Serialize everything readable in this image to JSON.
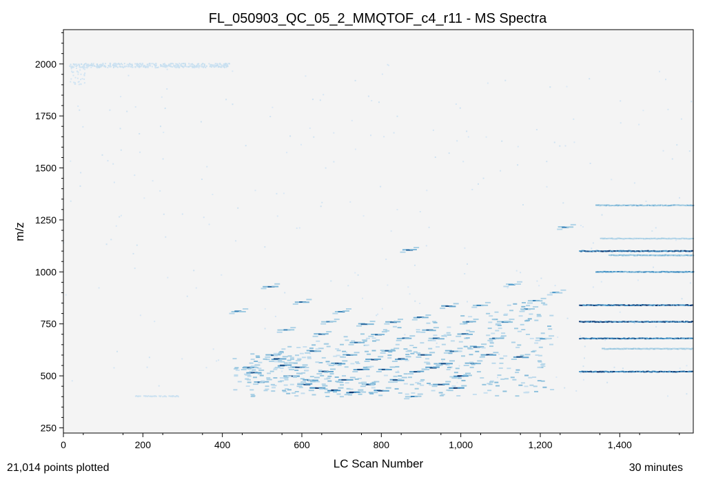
{
  "chart_data": {
    "type": "scatter",
    "title": "FL_050903_QC_05_2_MMQTOF_c4_r11 - MS Spectra",
    "xlabel": "LC Scan Number",
    "ylabel": "m/z",
    "xlim": [
      0,
      1585
    ],
    "ylim": [
      225,
      2165
    ],
    "xticks": [
      0,
      200,
      400,
      600,
      800,
      1000,
      1200,
      1400
    ],
    "xtick_labels": [
      "0",
      "200",
      "400",
      "600",
      "800",
      "1,000",
      "1,200",
      "1,400"
    ],
    "yticks": [
      250,
      500,
      750,
      1000,
      1250,
      1500,
      1750,
      2000
    ],
    "ytick_labels": [
      "250",
      "500",
      "750",
      "1000",
      "1250",
      "1500",
      "1750",
      "2000"
    ],
    "grid": false,
    "colormap": "Blues",
    "colors": {
      "light": "#cfe1f2",
      "mid": "#4a98c9",
      "dark": "#08306b",
      "background": "#f4f4f4"
    },
    "series": [
      {
        "role": "high_mz_band",
        "x_range": [
          15,
          420
        ],
        "y_values": [
          1985,
          1990,
          1995,
          2000
        ],
        "intensity": 0.05
      },
      {
        "role": "scattered_low_points",
        "x_range": [
          0,
          1585
        ],
        "y_range": [
          400,
          2000
        ],
        "intensity": 0.08
      },
      {
        "role": "peptide_features",
        "points": [
          [
            440,
            810,
            0.7
          ],
          [
            470,
            540,
            0.9
          ],
          [
            480,
            515,
            0.9
          ],
          [
            500,
            470,
            0.8
          ],
          [
            520,
            930,
            0.8
          ],
          [
            530,
            600,
            0.8
          ],
          [
            540,
            580,
            0.9
          ],
          [
            555,
            550,
            0.9
          ],
          [
            560,
            720,
            0.7
          ],
          [
            575,
            500,
            0.9
          ],
          [
            590,
            540,
            0.9
          ],
          [
            600,
            855,
            0.8
          ],
          [
            610,
            460,
            0.9
          ],
          [
            620,
            480,
            0.9
          ],
          [
            630,
            620,
            0.8
          ],
          [
            640,
            440,
            1.0
          ],
          [
            650,
            700,
            0.8
          ],
          [
            660,
            520,
            0.9
          ],
          [
            670,
            760,
            0.7
          ],
          [
            680,
            430,
            1.0
          ],
          [
            690,
            560,
            0.9
          ],
          [
            700,
            810,
            0.7
          ],
          [
            710,
            480,
            0.9
          ],
          [
            720,
            600,
            0.8
          ],
          [
            730,
            420,
            1.0
          ],
          [
            740,
            660,
            0.8
          ],
          [
            750,
            530,
            0.9
          ],
          [
            760,
            750,
            0.8
          ],
          [
            770,
            460,
            0.9
          ],
          [
            780,
            580,
            0.9
          ],
          [
            790,
            700,
            0.8
          ],
          [
            800,
            430,
            0.9
          ],
          [
            810,
            530,
            0.9
          ],
          [
            820,
            620,
            0.8
          ],
          [
            830,
            760,
            0.8
          ],
          [
            840,
            480,
            0.9
          ],
          [
            850,
            580,
            0.9
          ],
          [
            860,
            680,
            0.8
          ],
          [
            870,
            1105,
            0.8
          ],
          [
            880,
            400,
            0.7
          ],
          [
            890,
            520,
            0.9
          ],
          [
            900,
            780,
            0.8
          ],
          [
            910,
            600,
            0.9
          ],
          [
            920,
            720,
            0.8
          ],
          [
            930,
            540,
            0.9
          ],
          [
            940,
            680,
            0.8
          ],
          [
            950,
            460,
            0.9
          ],
          [
            960,
            560,
            0.9
          ],
          [
            970,
            835,
            0.9
          ],
          [
            980,
            620,
            0.8
          ],
          [
            990,
            440,
            1.0
          ],
          [
            1000,
            500,
            1.0
          ],
          [
            1010,
            700,
            0.8
          ],
          [
            1020,
            760,
            0.8
          ],
          [
            1030,
            560,
            0.8
          ],
          [
            1040,
            640,
            0.8
          ],
          [
            1050,
            840,
            0.7
          ],
          [
            1070,
            600,
            0.9
          ],
          [
            1090,
            680,
            0.8
          ],
          [
            1110,
            760,
            0.7
          ],
          [
            1130,
            940,
            0.6
          ],
          [
            1150,
            590,
            0.9
          ],
          [
            1170,
            820,
            0.7
          ],
          [
            1190,
            860,
            0.7
          ],
          [
            1210,
            680,
            0.6
          ],
          [
            1240,
            900,
            0.6
          ],
          [
            1265,
            1215,
            0.7
          ]
        ]
      },
      {
        "role": "late_horizontal_bands",
        "x_range": [
          1300,
          1585
        ],
        "bands": [
          {
            "mz": 520,
            "intensity": 1.0
          },
          {
            "mz": 630,
            "intensity": 0.4
          },
          {
            "mz": 680,
            "intensity": 0.9
          },
          {
            "mz": 760,
            "intensity": 1.0
          },
          {
            "mz": 840,
            "intensity": 1.0
          },
          {
            "mz": 1000,
            "intensity": 0.7
          },
          {
            "mz": 1080,
            "intensity": 0.5
          },
          {
            "mz": 1100,
            "intensity": 1.0
          },
          {
            "mz": 1160,
            "intensity": 0.3
          },
          {
            "mz": 1320,
            "intensity": 0.5
          }
        ]
      }
    ]
  },
  "footer": {
    "points_plotted": "21,014 points plotted",
    "duration": "30 minutes"
  }
}
